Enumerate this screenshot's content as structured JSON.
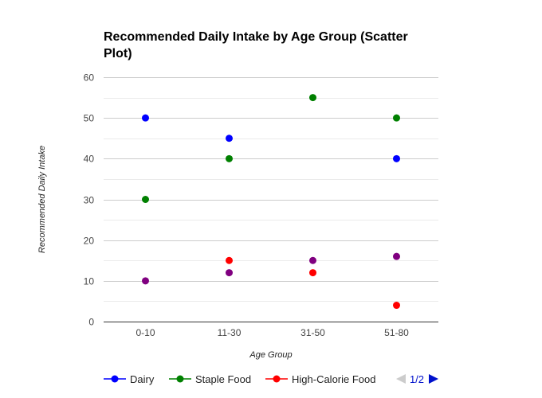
{
  "chart_data": {
    "type": "scatter",
    "title": "Recommended Daily Intake by Age Group (Scatter Plot)",
    "xlabel": "Age Group",
    "ylabel": "Recommended Daily Intake",
    "categories": [
      "0-10",
      "11-30",
      "31-50",
      "51-80"
    ],
    "ylim": [
      0,
      60
    ],
    "yticks": [
      0,
      10,
      20,
      30,
      40,
      50,
      60
    ],
    "grid": true,
    "legend_position": "bottom",
    "series": [
      {
        "name": "Dairy",
        "color": "#0000ff",
        "values": [
          50,
          45,
          null,
          40
        ]
      },
      {
        "name": "Staple Food",
        "color": "#008000",
        "values": [
          30,
          40,
          55,
          50
        ]
      },
      {
        "name": "High-Calorie Food",
        "color": "#ff0000",
        "values": [
          null,
          15,
          12,
          4
        ]
      },
      {
        "name": "",
        "color": "#800080",
        "values": [
          10,
          12,
          15,
          16
        ]
      }
    ],
    "legend_entries": [
      "Dairy",
      "Staple Food",
      "High-Calorie Food"
    ],
    "legend_page": "1/2"
  }
}
